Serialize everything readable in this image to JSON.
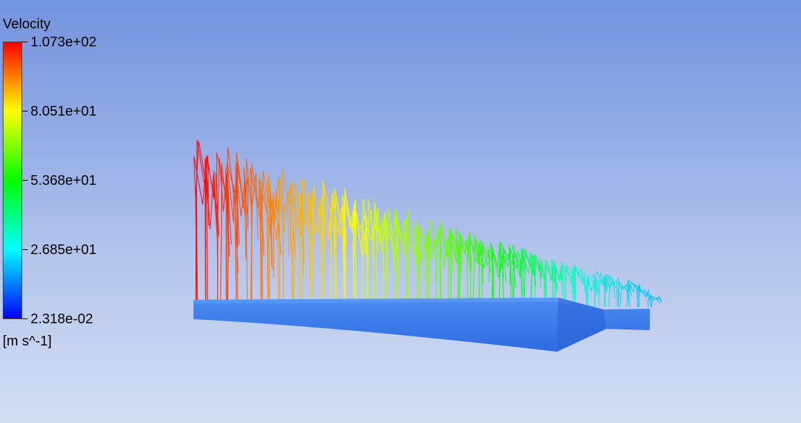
{
  "legend": {
    "title": "Velocity",
    "units": "[m s^-1]",
    "colormap": [
      "#0000ff",
      "#00ffff",
      "#00ff00",
      "#ffff00",
      "#ff0000"
    ],
    "labels": [
      "1.073e+02",
      "8.051e+01",
      "5.368e+01",
      "2.685e+01",
      "2.318e-02"
    ]
  },
  "scene": {
    "plot_type": "velocity vector field over geometry",
    "geometry_color": "#3a7bea",
    "vector_colors_inlet_to_outlet": [
      "#ff0000",
      "#ff8c00",
      "#ffff00",
      "#7fff00",
      "#00ff00",
      "#00ffcc",
      "#00bfff"
    ]
  }
}
